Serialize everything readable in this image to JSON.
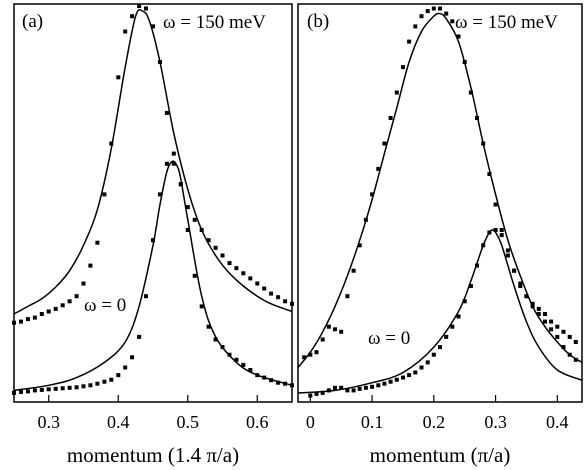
{
  "chart_data": [
    {
      "type": "line",
      "panel_label": "(a)",
      "xlabel": "momentum (1.4 π/a)",
      "ylabel": "",
      "xlim": [
        0.25,
        0.65
      ],
      "xticks": [
        "0.3",
        "0.4",
        "0.5",
        "0.6"
      ],
      "xtick_values": [
        0.3,
        0.4,
        0.5,
        0.6
      ],
      "grid": false,
      "annotations": [
        "ω = 150 meV",
        "ω = 0"
      ],
      "series": [
        {
          "label": "ω = 150 meV",
          "fit_line": [
            [
              0.25,
              0.165
            ],
            [
              0.27,
              0.18
            ],
            [
              0.29,
              0.195
            ],
            [
              0.31,
              0.218
            ],
            [
              0.33,
              0.25
            ],
            [
              0.35,
              0.3
            ],
            [
              0.37,
              0.37
            ],
            [
              0.39,
              0.49
            ],
            [
              0.41,
              0.65
            ],
            [
              0.425,
              0.75
            ],
            [
              0.435,
              0.76
            ],
            [
              0.445,
              0.74
            ],
            [
              0.46,
              0.66
            ],
            [
              0.48,
              0.52
            ],
            [
              0.5,
              0.41
            ],
            [
              0.52,
              0.33
            ],
            [
              0.54,
              0.28
            ],
            [
              0.56,
              0.245
            ],
            [
              0.58,
              0.22
            ],
            [
              0.6,
              0.2
            ],
            [
              0.62,
              0.185
            ],
            [
              0.65,
              0.17
            ]
          ],
          "points": [
            [
              0.25,
              0.148
            ],
            [
              0.26,
              0.15
            ],
            [
              0.27,
              0.155
            ],
            [
              0.28,
              0.158
            ],
            [
              0.29,
              0.165
            ],
            [
              0.3,
              0.17
            ],
            [
              0.31,
              0.175
            ],
            [
              0.32,
              0.182
            ],
            [
              0.33,
              0.19
            ],
            [
              0.34,
              0.2
            ],
            [
              0.35,
              0.225
            ],
            [
              0.36,
              0.26
            ],
            [
              0.37,
              0.305
            ],
            [
              0.38,
              0.4
            ],
            [
              0.39,
              0.5
            ],
            [
              0.4,
              0.63
            ],
            [
              0.41,
              0.72
            ],
            [
              0.42,
              0.75
            ],
            [
              0.43,
              0.77
            ],
            [
              0.44,
              0.765
            ],
            [
              0.45,
              0.73
            ],
            [
              0.46,
              0.66
            ],
            [
              0.47,
              0.56
            ],
            [
              0.48,
              0.48
            ],
            [
              0.49,
              0.42
            ],
            [
              0.5,
              0.375
            ],
            [
              0.51,
              0.35
            ],
            [
              0.52,
              0.33
            ],
            [
              0.53,
              0.31
            ],
            [
              0.54,
              0.295
            ],
            [
              0.55,
              0.28
            ],
            [
              0.56,
              0.265
            ],
            [
              0.57,
              0.255
            ],
            [
              0.58,
              0.245
            ],
            [
              0.59,
              0.235
            ],
            [
              0.6,
              0.225
            ],
            [
              0.61,
              0.215
            ],
            [
              0.62,
              0.205
            ],
            [
              0.63,
              0.198
            ],
            [
              0.64,
              0.19
            ],
            [
              0.65,
              0.185
            ]
          ]
        },
        {
          "label": "ω = 0",
          "fit_line": [
            [
              0.25,
              0.015
            ],
            [
              0.3,
              0.025
            ],
            [
              0.34,
              0.04
            ],
            [
              0.38,
              0.07
            ],
            [
              0.41,
              0.11
            ],
            [
              0.43,
              0.18
            ],
            [
              0.45,
              0.3
            ],
            [
              0.46,
              0.38
            ],
            [
              0.47,
              0.445
            ],
            [
              0.478,
              0.465
            ],
            [
              0.485,
              0.455
            ],
            [
              0.49,
              0.43
            ],
            [
              0.5,
              0.35
            ],
            [
              0.52,
              0.2
            ],
            [
              0.54,
              0.12
            ],
            [
              0.57,
              0.07
            ],
            [
              0.6,
              0.045
            ],
            [
              0.65,
              0.025
            ]
          ],
          "points": [
            [
              0.25,
              0.01
            ],
            [
              0.26,
              0.012
            ],
            [
              0.27,
              0.013
            ],
            [
              0.28,
              0.015
            ],
            [
              0.29,
              0.016
            ],
            [
              0.3,
              0.017
            ],
            [
              0.31,
              0.018
            ],
            [
              0.32,
              0.019
            ],
            [
              0.33,
              0.02
            ],
            [
              0.34,
              0.021
            ],
            [
              0.35,
              0.023
            ],
            [
              0.36,
              0.025
            ],
            [
              0.37,
              0.028
            ],
            [
              0.38,
              0.032
            ],
            [
              0.39,
              0.036
            ],
            [
              0.4,
              0.045
            ],
            [
              0.41,
              0.06
            ],
            [
              0.42,
              0.08
            ],
            [
              0.43,
              0.12
            ],
            [
              0.44,
              0.2
            ],
            [
              0.45,
              0.31
            ],
            [
              0.46,
              0.4
            ],
            [
              0.47,
              0.46
            ],
            [
              0.48,
              0.46
            ],
            [
              0.49,
              0.42
            ],
            [
              0.5,
              0.33
            ],
            [
              0.51,
              0.24
            ],
            [
              0.52,
              0.18
            ],
            [
              0.53,
              0.14
            ],
            [
              0.54,
              0.115
            ],
            [
              0.55,
              0.1
            ],
            [
              0.56,
              0.085
            ],
            [
              0.57,
              0.075
            ],
            [
              0.58,
              0.065
            ],
            [
              0.59,
              0.055
            ],
            [
              0.6,
              0.045
            ],
            [
              0.61,
              0.04
            ],
            [
              0.62,
              0.035
            ],
            [
              0.63,
              0.03
            ],
            [
              0.64,
              0.028
            ],
            [
              0.65,
              0.025
            ]
          ]
        }
      ]
    },
    {
      "type": "line",
      "panel_label": "(b)",
      "xlabel": "momentum (π/a)",
      "ylabel": "",
      "xlim": [
        -0.02,
        0.44
      ],
      "xticks": [
        "0",
        "0.1",
        "0.2",
        "0.3",
        "0.4"
      ],
      "xtick_values": [
        0,
        0.1,
        0.2,
        0.3,
        0.4
      ],
      "grid": false,
      "annotations": [
        "ω = 150 meV",
        "ω = 0"
      ],
      "series": [
        {
          "label": "ω = 150 meV",
          "fit_line": [
            [
              -0.02,
              0.06
            ],
            [
              0.0,
              0.09
            ],
            [
              0.02,
              0.13
            ],
            [
              0.04,
              0.18
            ],
            [
              0.06,
              0.24
            ],
            [
              0.08,
              0.31
            ],
            [
              0.1,
              0.39
            ],
            [
              0.12,
              0.48
            ],
            [
              0.14,
              0.57
            ],
            [
              0.16,
              0.66
            ],
            [
              0.18,
              0.72
            ],
            [
              0.2,
              0.75
            ],
            [
              0.21,
              0.755
            ],
            [
              0.22,
              0.745
            ],
            [
              0.24,
              0.7
            ],
            [
              0.26,
              0.61
            ],
            [
              0.28,
              0.5
            ],
            [
              0.3,
              0.4
            ],
            [
              0.32,
              0.31
            ],
            [
              0.34,
              0.24
            ],
            [
              0.36,
              0.18
            ],
            [
              0.38,
              0.14
            ],
            [
              0.4,
              0.11
            ],
            [
              0.42,
              0.085
            ],
            [
              0.44,
              0.07
            ]
          ],
          "points": [
            [
              -0.01,
              0.08
            ],
            [
              0.0,
              0.085
            ],
            [
              0.01,
              0.09
            ],
            [
              0.02,
              0.115
            ],
            [
              0.03,
              0.14
            ],
            [
              0.04,
              0.135
            ],
            [
              0.05,
              0.13
            ],
            [
              0.06,
              0.2
            ],
            [
              0.07,
              0.25
            ],
            [
              0.08,
              0.3
            ],
            [
              0.09,
              0.35
            ],
            [
              0.1,
              0.4
            ],
            [
              0.11,
              0.45
            ],
            [
              0.12,
              0.5
            ],
            [
              0.13,
              0.55
            ],
            [
              0.14,
              0.6
            ],
            [
              0.15,
              0.65
            ],
            [
              0.16,
              0.7
            ],
            [
              0.17,
              0.73
            ],
            [
              0.18,
              0.75
            ],
            [
              0.19,
              0.76
            ],
            [
              0.2,
              0.765
            ],
            [
              0.21,
              0.765
            ],
            [
              0.22,
              0.755
            ],
            [
              0.23,
              0.74
            ],
            [
              0.24,
              0.71
            ],
            [
              0.25,
              0.66
            ],
            [
              0.26,
              0.6
            ],
            [
              0.27,
              0.55
            ],
            [
              0.28,
              0.5
            ],
            [
              0.29,
              0.44
            ],
            [
              0.3,
              0.38
            ],
            [
              0.31,
              0.33
            ],
            [
              0.32,
              0.28
            ],
            [
              0.33,
              0.25
            ],
            [
              0.34,
              0.225
            ],
            [
              0.35,
              0.2
            ],
            [
              0.36,
              0.185
            ],
            [
              0.37,
              0.175
            ],
            [
              0.38,
              0.165
            ],
            [
              0.39,
              0.15
            ],
            [
              0.4,
              0.14
            ],
            [
              0.41,
              0.13
            ],
            [
              0.42,
              0.12
            ],
            [
              0.43,
              0.11
            ]
          ]
        },
        {
          "label": "ω = 0",
          "fit_line": [
            [
              -0.02,
              0.01
            ],
            [
              0.04,
              0.015
            ],
            [
              0.1,
              0.03
            ],
            [
              0.15,
              0.05
            ],
            [
              0.2,
              0.1
            ],
            [
              0.24,
              0.17
            ],
            [
              0.26,
              0.23
            ],
            [
              0.28,
              0.3
            ],
            [
              0.29,
              0.325
            ],
            [
              0.295,
              0.33
            ],
            [
              0.3,
              0.325
            ],
            [
              0.31,
              0.3
            ],
            [
              0.33,
              0.22
            ],
            [
              0.35,
              0.15
            ],
            [
              0.37,
              0.1
            ],
            [
              0.4,
              0.055
            ],
            [
              0.44,
              0.035
            ]
          ],
          "points": [
            [
              0.0,
              0.005
            ],
            [
              0.01,
              0.008
            ],
            [
              0.02,
              0.01
            ],
            [
              0.03,
              0.015
            ],
            [
              0.04,
              0.02
            ],
            [
              0.05,
              0.02
            ],
            [
              0.06,
              0.015
            ],
            [
              0.07,
              0.015
            ],
            [
              0.08,
              0.018
            ],
            [
              0.09,
              0.02
            ],
            [
              0.1,
              0.022
            ],
            [
              0.11,
              0.025
            ],
            [
              0.12,
              0.028
            ],
            [
              0.13,
              0.032
            ],
            [
              0.14,
              0.036
            ],
            [
              0.15,
              0.04
            ],
            [
              0.16,
              0.045
            ],
            [
              0.17,
              0.05
            ],
            [
              0.18,
              0.06
            ],
            [
              0.19,
              0.07
            ],
            [
              0.2,
              0.085
            ],
            [
              0.21,
              0.1
            ],
            [
              0.22,
              0.12
            ],
            [
              0.23,
              0.14
            ],
            [
              0.24,
              0.16
            ],
            [
              0.25,
              0.19
            ],
            [
              0.26,
              0.22
            ],
            [
              0.27,
              0.26
            ],
            [
              0.28,
              0.3
            ],
            [
              0.29,
              0.325
            ],
            [
              0.3,
              0.33
            ],
            [
              0.31,
              0.32
            ],
            [
              0.32,
              0.29
            ],
            [
              0.33,
              0.25
            ],
            [
              0.34,
              0.22
            ],
            [
              0.35,
              0.2
            ],
            [
              0.36,
              0.18
            ],
            [
              0.37,
              0.165
            ],
            [
              0.38,
              0.15
            ],
            [
              0.39,
              0.135
            ],
            [
              0.4,
              0.12
            ],
            [
              0.41,
              0.1
            ],
            [
              0.42,
              0.085
            ],
            [
              0.43,
              0.075
            ]
          ]
        }
      ]
    }
  ]
}
